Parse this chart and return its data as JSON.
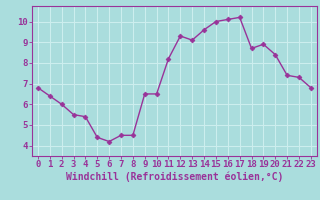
{
  "x": [
    0,
    1,
    2,
    3,
    4,
    5,
    6,
    7,
    8,
    9,
    10,
    11,
    12,
    13,
    14,
    15,
    16,
    17,
    18,
    19,
    20,
    21,
    22,
    23
  ],
  "y": [
    6.8,
    6.4,
    6.0,
    5.5,
    5.4,
    4.4,
    4.2,
    4.5,
    4.5,
    6.5,
    6.5,
    8.2,
    9.3,
    9.1,
    9.6,
    10.0,
    10.1,
    10.2,
    8.7,
    8.9,
    8.4,
    7.4,
    7.3,
    6.8
  ],
  "line_color": "#993399",
  "marker": "D",
  "marker_size": 2.5,
  "linewidth": 1.0,
  "bg_color": "#aadddd",
  "grid_color": "#cceeee",
  "xlabel": "Windchill (Refroidissement éolien,°C)",
  "ylabel": "",
  "xlim": [
    -0.5,
    23.5
  ],
  "ylim": [
    3.5,
    10.75
  ],
  "yticks": [
    4,
    5,
    6,
    7,
    8,
    9,
    10
  ],
  "xticks": [
    0,
    1,
    2,
    3,
    4,
    5,
    6,
    7,
    8,
    9,
    10,
    11,
    12,
    13,
    14,
    15,
    16,
    17,
    18,
    19,
    20,
    21,
    22,
    23
  ],
  "axis_color": "#993399",
  "tick_color": "#993399",
  "label_color": "#993399",
  "font_size": 6.5,
  "xlabel_fontsize": 7.0
}
